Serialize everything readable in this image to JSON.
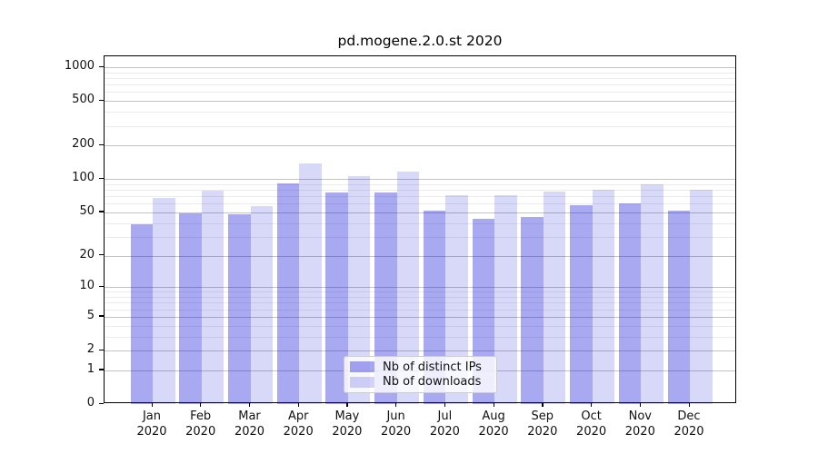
{
  "chart_data": {
    "type": "bar",
    "title": "pd.mogene.2.0.st 2020",
    "categories": [
      "Jan",
      "Feb",
      "Mar",
      "Apr",
      "May",
      "Jun",
      "Jul",
      "Aug",
      "Sep",
      "Oct",
      "Nov",
      "Dec"
    ],
    "year_label": "2020",
    "series": [
      {
        "name": "Nb of distinct IPs",
        "color": "#0a0ad7",
        "alpha": 0.35,
        "values": [
          39,
          49,
          48,
          92,
          76,
          75,
          52,
          44,
          45,
          58,
          60,
          52
        ]
      },
      {
        "name": "Nb of downloads",
        "color": "#0a0ad7",
        "alpha": 0.16,
        "values": [
          67,
          78,
          57,
          137,
          107,
          116,
          71,
          71,
          77,
          80,
          89,
          80
        ]
      }
    ],
    "y_axis": {
      "scale": "log1p",
      "ticks": [
        0,
        1,
        2,
        5,
        10,
        20,
        50,
        100,
        200,
        500,
        1000
      ],
      "minor_ticks": [
        3,
        4,
        6,
        7,
        8,
        9,
        30,
        40,
        60,
        70,
        80,
        90,
        300,
        400,
        600,
        700,
        800,
        900
      ],
      "max": 1250
    },
    "grid": true,
    "legend_position": "bottom-center"
  }
}
